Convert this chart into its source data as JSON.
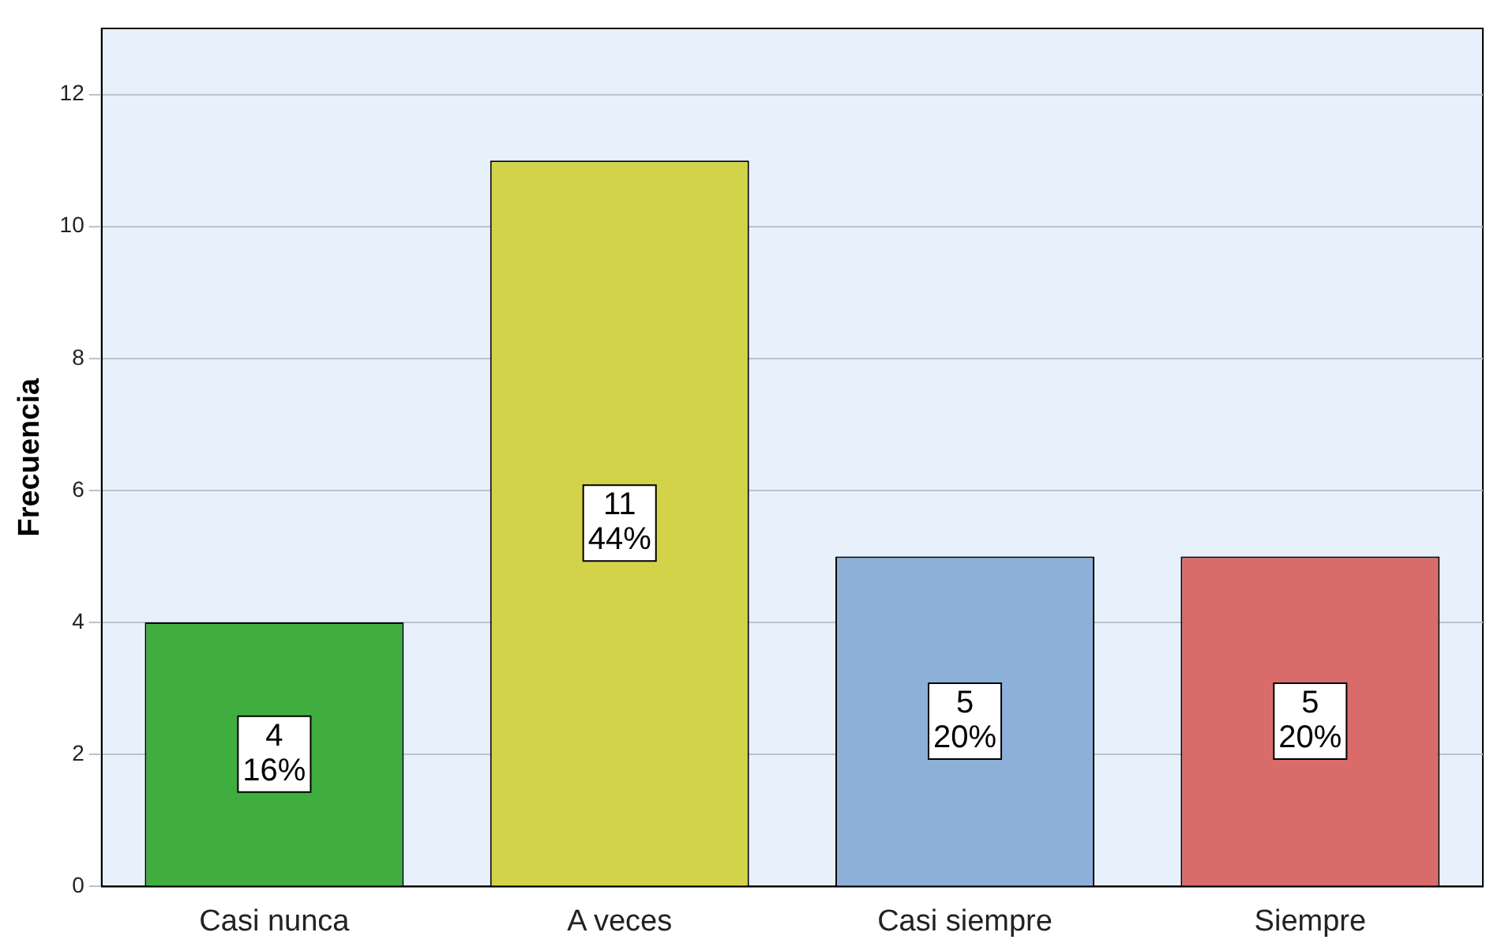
{
  "chart_data": {
    "type": "bar",
    "ylabel": "Frecuencia",
    "categories": [
      "Casi nunca",
      "A veces",
      "Casi siempre",
      "Siempre"
    ],
    "values": [
      4,
      11,
      5,
      5
    ],
    "colors": [
      "#3fae3f",
      "#d3d34a",
      "#8db0d9",
      "#da6b6b"
    ],
    "value_labels": [
      "4\n16%",
      "11\n44%",
      "5\n20%",
      "5\n20%"
    ],
    "ylim": [
      0,
      13
    ],
    "yticks": [
      0,
      2,
      4,
      6,
      8,
      10,
      12
    ],
    "grid": "y"
  }
}
